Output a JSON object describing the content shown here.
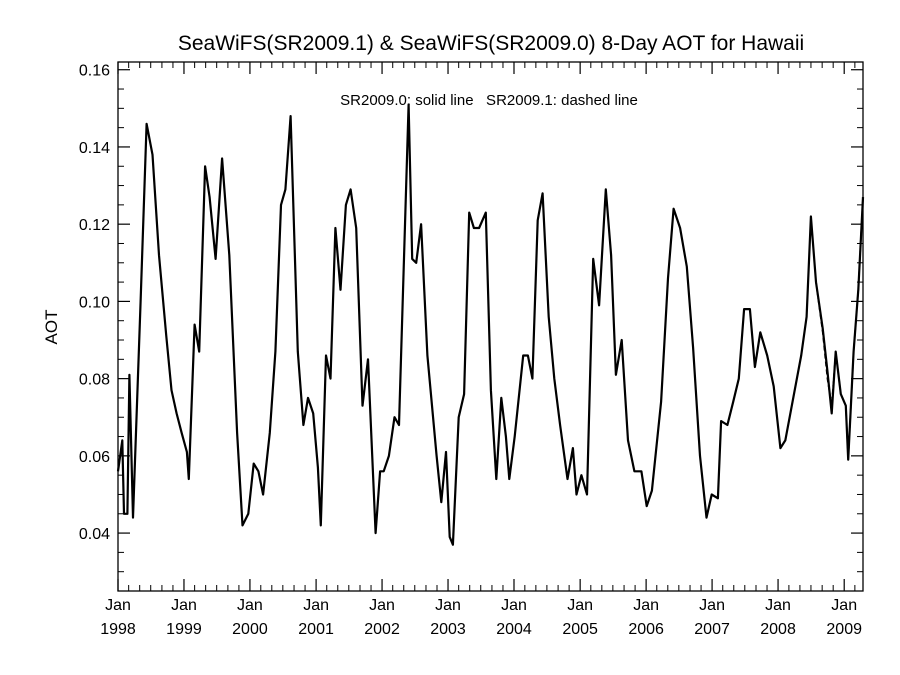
{
  "chart_data": {
    "type": "line",
    "title": "SeaWiFS(SR2009.1) & SeaWiFS(SR2009.0) 8-Day AOT for Hawaii",
    "annotation": "SR2009.0: solid line   SR2009.1: dashed line",
    "xlabel": "",
    "ylabel": "AOT",
    "ylim": [
      0.025,
      0.162
    ],
    "xlim": [
      "1998-01-01",
      "2009-04-15"
    ],
    "yticks": [
      0.04,
      0.06,
      0.08,
      0.1,
      0.12,
      0.14,
      0.16
    ],
    "ytick_labels": [
      "0.04",
      "0.06",
      "0.08",
      "0.10",
      "0.12",
      "0.14",
      "0.16"
    ],
    "xticks": [
      {
        "date": "1998-01-01",
        "month": "Jan",
        "year": "1998"
      },
      {
        "date": "1999-01-01",
        "month": "Jan",
        "year": "1999"
      },
      {
        "date": "2000-01-01",
        "month": "Jan",
        "year": "2000"
      },
      {
        "date": "2001-01-01",
        "month": "Jan",
        "year": "2001"
      },
      {
        "date": "2002-01-01",
        "month": "Jan",
        "year": "2002"
      },
      {
        "date": "2003-01-01",
        "month": "Jan",
        "year": "2003"
      },
      {
        "date": "2004-01-01",
        "month": "Jan",
        "year": "2004"
      },
      {
        "date": "2005-01-01",
        "month": "Jan",
        "year": "2005"
      },
      {
        "date": "2006-01-01",
        "month": "Jan",
        "year": "2006"
      },
      {
        "date": "2007-01-01",
        "month": "Jan",
        "year": "2007"
      },
      {
        "date": "2008-01-01",
        "month": "Jan",
        "year": "2008"
      },
      {
        "date": "2009-01-01",
        "month": "Jan",
        "year": "2009"
      }
    ],
    "series": [
      {
        "name": "SR2009.0",
        "style": "solid",
        "color": "#000000",
        "points": [
          [
            "1998-01-01",
            0.056
          ],
          [
            "1998-01-25",
            0.064
          ],
          [
            "1998-02-03",
            0.045
          ],
          [
            "1998-02-22",
            0.045
          ],
          [
            "1998-03-05",
            0.081
          ],
          [
            "1998-03-25",
            0.044
          ],
          [
            "1998-05-06",
            0.1
          ],
          [
            "1998-06-08",
            0.146
          ],
          [
            "1998-07-11",
            0.138
          ],
          [
            "1998-08-16",
            0.112
          ],
          [
            "1998-09-25",
            0.091
          ],
          [
            "1998-10-24",
            0.077
          ],
          [
            "1998-11-21",
            0.071
          ],
          [
            "1998-12-19",
            0.066
          ],
          [
            "1999-01-17",
            0.061
          ],
          [
            "1999-01-28",
            0.054
          ],
          [
            "1999-03-01",
            0.094
          ],
          [
            "1999-03-26",
            0.087
          ],
          [
            "1999-04-28",
            0.135
          ],
          [
            "1999-05-23",
            0.127
          ],
          [
            "1999-06-25",
            0.111
          ],
          [
            "1999-07-31",
            0.137
          ],
          [
            "1999-09-09",
            0.112
          ],
          [
            "1999-10-22",
            0.066
          ],
          [
            "1999-11-21",
            0.042
          ],
          [
            "1999-12-23",
            0.045
          ],
          [
            "2000-01-22",
            0.058
          ],
          [
            "2000-02-17",
            0.056
          ],
          [
            "2000-03-14",
            0.05
          ],
          [
            "2000-04-20",
            0.066
          ],
          [
            "2000-05-21",
            0.087
          ],
          [
            "2000-06-21",
            0.125
          ],
          [
            "2000-07-15",
            0.129
          ],
          [
            "2000-08-13",
            0.148
          ],
          [
            "2000-09-22",
            0.087
          ],
          [
            "2000-10-23",
            0.068
          ],
          [
            "2000-11-17",
            0.075
          ],
          [
            "2000-12-16",
            0.071
          ],
          [
            "2001-01-11",
            0.057
          ],
          [
            "2001-01-27",
            0.042
          ],
          [
            "2001-02-25",
            0.086
          ],
          [
            "2001-03-22",
            0.08
          ],
          [
            "2001-04-18",
            0.119
          ],
          [
            "2001-05-16",
            0.103
          ],
          [
            "2001-06-15",
            0.125
          ],
          [
            "2001-07-11",
            0.129
          ],
          [
            "2001-08-11",
            0.119
          ],
          [
            "2001-09-15",
            0.073
          ],
          [
            "2001-10-15",
            0.085
          ],
          [
            "2001-11-26",
            0.04
          ],
          [
            "2001-12-21",
            0.056
          ],
          [
            "2002-01-10",
            0.056
          ],
          [
            "2002-02-08",
            0.06
          ],
          [
            "2002-03-11",
            0.07
          ],
          [
            "2002-04-05",
            0.068
          ],
          [
            "2002-05-28",
            0.151
          ],
          [
            "2002-06-17",
            0.111
          ],
          [
            "2002-07-09",
            0.11
          ],
          [
            "2002-08-05",
            0.12
          ],
          [
            "2002-09-09",
            0.086
          ],
          [
            "2002-10-30",
            0.06
          ],
          [
            "2002-11-25",
            0.048
          ],
          [
            "2002-12-21",
            0.061
          ],
          [
            "2003-01-10",
            0.039
          ],
          [
            "2003-01-28",
            0.037
          ],
          [
            "2003-03-01",
            0.07
          ],
          [
            "2003-03-31",
            0.076
          ],
          [
            "2003-04-28",
            0.123
          ],
          [
            "2003-05-24",
            0.119
          ],
          [
            "2003-06-22",
            0.119
          ],
          [
            "2003-07-29",
            0.123
          ],
          [
            "2003-08-26",
            0.077
          ],
          [
            "2003-09-25",
            0.054
          ],
          [
            "2003-10-23",
            0.075
          ],
          [
            "2003-11-17",
            0.065
          ],
          [
            "2003-12-06",
            0.054
          ],
          [
            "2004-01-05",
            0.065
          ],
          [
            "2004-02-21",
            0.086
          ],
          [
            "2004-03-18",
            0.086
          ],
          [
            "2004-04-12",
            0.08
          ],
          [
            "2004-05-11",
            0.121
          ],
          [
            "2004-06-07",
            0.128
          ],
          [
            "2004-07-11",
            0.096
          ],
          [
            "2004-08-11",
            0.08
          ],
          [
            "2004-09-12",
            0.068
          ],
          [
            "2004-10-23",
            0.054
          ],
          [
            "2004-11-22",
            0.062
          ],
          [
            "2004-12-12",
            0.05
          ],
          [
            "2005-01-08",
            0.055
          ],
          [
            "2005-02-08",
            0.05
          ],
          [
            "2005-03-14",
            0.111
          ],
          [
            "2005-04-16",
            0.099
          ],
          [
            "2005-05-23",
            0.129
          ],
          [
            "2005-06-21",
            0.112
          ],
          [
            "2005-07-18",
            0.081
          ],
          [
            "2005-08-19",
            0.09
          ],
          [
            "2005-09-23",
            0.064
          ],
          [
            "2005-10-28",
            0.056
          ],
          [
            "2005-12-06",
            0.056
          ],
          [
            "2006-01-04",
            0.047
          ],
          [
            "2006-02-02",
            0.051
          ],
          [
            "2006-03-25",
            0.074
          ],
          [
            "2006-05-02",
            0.106
          ],
          [
            "2006-06-02",
            0.124
          ],
          [
            "2006-07-08",
            0.119
          ],
          [
            "2006-08-14",
            0.109
          ],
          [
            "2006-09-18",
            0.088
          ],
          [
            "2006-10-26",
            0.06
          ],
          [
            "2006-12-01",
            0.044
          ],
          [
            "2006-12-30",
            0.05
          ],
          [
            "2007-02-02",
            0.049
          ],
          [
            "2007-02-20",
            0.069
          ],
          [
            "2007-03-27",
            0.068
          ],
          [
            "2007-04-28",
            0.074
          ],
          [
            "2007-05-29",
            0.08
          ],
          [
            "2007-06-27",
            0.098
          ],
          [
            "2007-07-29",
            0.098
          ],
          [
            "2007-08-26",
            0.083
          ],
          [
            "2007-09-25",
            0.092
          ],
          [
            "2007-11-02",
            0.086
          ],
          [
            "2007-12-08",
            0.078
          ],
          [
            "2008-01-14",
            0.062
          ],
          [
            "2008-02-10",
            0.064
          ],
          [
            "2008-05-08",
            0.086
          ],
          [
            "2008-06-07",
            0.096
          ],
          [
            "2008-07-01",
            0.122
          ],
          [
            "2008-07-29",
            0.105
          ],
          [
            "2008-09-04",
            0.093
          ],
          [
            "2008-09-30",
            0.082
          ],
          [
            "2008-10-24",
            0.071
          ],
          [
            "2008-11-15",
            0.087
          ],
          [
            "2008-12-13",
            0.076
          ],
          [
            "2009-01-10",
            0.073
          ],
          [
            "2009-01-23",
            0.059
          ],
          [
            "2009-02-22",
            0.087
          ],
          [
            "2009-03-20",
            0.103
          ],
          [
            "2009-04-15",
            0.127
          ]
        ]
      },
      {
        "name": "SR2009.1",
        "style": "dashed",
        "color": "#000000",
        "points": [
          [
            "2008-07-29",
            0.105
          ],
          [
            "2008-09-04",
            0.092
          ],
          [
            "2008-09-30",
            0.08
          ],
          [
            "2008-10-24",
            0.073
          ],
          [
            "2008-11-15",
            0.087
          ],
          [
            "2008-12-13",
            0.076
          ],
          [
            "2009-01-10",
            0.073
          ],
          [
            "2009-01-23",
            0.059
          ],
          [
            "2009-02-22",
            0.087
          ],
          [
            "2009-03-20",
            0.103
          ],
          [
            "2009-04-15",
            0.127
          ]
        ]
      }
    ]
  }
}
